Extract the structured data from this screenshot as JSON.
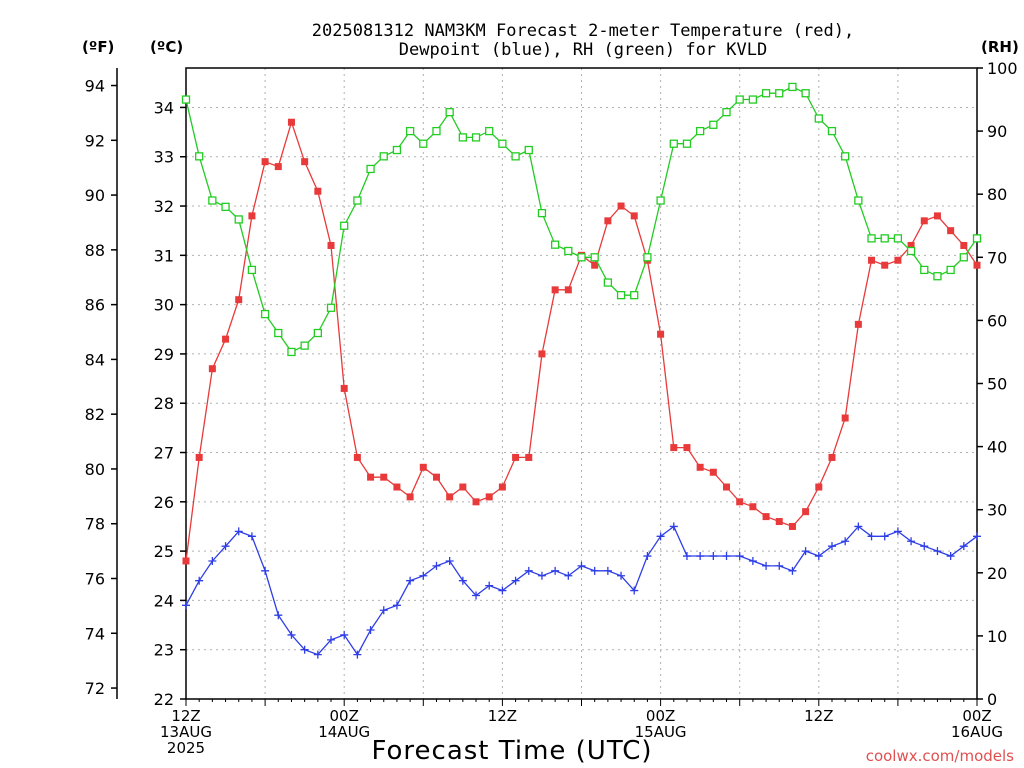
{
  "chart_data": {
    "type": "line",
    "title": [
      "2025081312 NAM3KM Forecast 2-meter Temperature (red),",
      "Dewpoint (blue), RH (green) for KVLD"
    ],
    "left_axis_labels": {
      "fahrenheit": "(ºF)",
      "celsius": "(ºC)"
    },
    "right_axis_label": "(RH)",
    "xlabel": "Forecast Time (UTC)",
    "credit": "coolwx.com/models",
    "x_ticks": [
      {
        "hour": 0,
        "lines": [
          "12Z",
          "13AUG",
          "2025"
        ]
      },
      {
        "hour": 12,
        "lines": [
          "00Z",
          "14AUG"
        ]
      },
      {
        "hour": 24,
        "lines": [
          "12Z"
        ]
      },
      {
        "hour": 36,
        "lines": [
          "00Z",
          "15AUG"
        ]
      },
      {
        "hour": 48,
        "lines": [
          "12Z"
        ]
      },
      {
        "hour": 60,
        "lines": [
          "00Z",
          "16AUG"
        ]
      }
    ],
    "xlim": [
      0,
      60
    ],
    "celsius_axis": {
      "ylim": [
        22,
        34.8
      ],
      "ticks": [
        22,
        23,
        24,
        25,
        26,
        27,
        28,
        29,
        30,
        31,
        32,
        33,
        34
      ]
    },
    "fahrenheit_axis": {
      "ticks": [
        72,
        74,
        76,
        78,
        80,
        82,
        84,
        86,
        88,
        90,
        92,
        94
      ]
    },
    "rh_axis": {
      "ylim": [
        0,
        100
      ],
      "ticks": [
        0,
        10,
        20,
        30,
        40,
        50,
        60,
        70,
        80,
        90,
        100
      ]
    },
    "grid": true,
    "series": [
      {
        "name": "Temperature",
        "units": "C",
        "color": "#e83a3a",
        "marker": "filled-square",
        "x": [
          0,
          1,
          2,
          3,
          4,
          5,
          6,
          7,
          8,
          9,
          10,
          11,
          12,
          13,
          14,
          15,
          16,
          17,
          18,
          19,
          20,
          21,
          22,
          23,
          24,
          25,
          26,
          27,
          28,
          29,
          30,
          31,
          32,
          33,
          34,
          35,
          36,
          37,
          38,
          39,
          40,
          41,
          42,
          43,
          44,
          45,
          46,
          47,
          48,
          49,
          50,
          51,
          52,
          53,
          54,
          55,
          56,
          57,
          58,
          59,
          60
        ],
        "values": [
          24.8,
          26.9,
          28.7,
          29.3,
          30.1,
          31.8,
          32.9,
          32.8,
          33.7,
          32.9,
          32.3,
          31.2,
          28.3,
          26.9,
          26.5,
          26.5,
          26.3,
          26.1,
          26.7,
          26.5,
          26.1,
          26.3,
          26.0,
          26.1,
          26.3,
          26.9,
          26.9,
          29.0,
          30.3,
          30.3,
          31.0,
          30.8,
          31.7,
          32.0,
          31.8,
          30.9,
          29.4,
          27.1,
          27.1,
          26.7,
          26.6,
          26.3,
          26.0,
          25.9,
          25.7,
          25.6,
          25.5,
          25.8,
          26.3,
          26.9,
          27.7,
          29.6,
          30.9,
          30.8,
          30.9,
          31.2,
          31.7,
          31.8,
          31.5,
          31.2,
          30.8
        ]
      },
      {
        "name": "Dewpoint",
        "units": "C",
        "color": "#2e3ee6",
        "marker": "plus",
        "x": [
          0,
          1,
          2,
          3,
          4,
          5,
          6,
          7,
          8,
          9,
          10,
          11,
          12,
          13,
          14,
          15,
          16,
          17,
          18,
          19,
          20,
          21,
          22,
          23,
          24,
          25,
          26,
          27,
          28,
          29,
          30,
          31,
          32,
          33,
          34,
          35,
          36,
          37,
          38,
          39,
          40,
          41,
          42,
          43,
          44,
          45,
          46,
          47,
          48,
          49,
          50,
          51,
          52,
          53,
          54,
          55,
          56,
          57,
          58,
          59,
          60
        ],
        "values": [
          23.9,
          24.4,
          24.8,
          25.1,
          25.4,
          25.3,
          24.6,
          23.7,
          23.3,
          23.0,
          22.9,
          23.2,
          23.3,
          22.9,
          23.4,
          23.8,
          23.9,
          24.4,
          24.5,
          24.7,
          24.8,
          24.4,
          24.1,
          24.3,
          24.2,
          24.4,
          24.6,
          24.5,
          24.6,
          24.5,
          24.7,
          24.6,
          24.6,
          24.5,
          24.2,
          24.9,
          25.3,
          25.5,
          24.9,
          24.9,
          24.9,
          24.9,
          24.9,
          24.8,
          24.7,
          24.7,
          24.6,
          25.0,
          24.9,
          25.1,
          25.2,
          25.5,
          25.3,
          25.3,
          25.4,
          25.2,
          25.1,
          25.0,
          24.9,
          25.1,
          25.3
        ]
      },
      {
        "name": "RH",
        "units": "%",
        "color": "#22cc22",
        "marker": "open-square",
        "x": [
          0,
          1,
          2,
          3,
          4,
          5,
          6,
          7,
          8,
          9,
          10,
          11,
          12,
          13,
          14,
          15,
          16,
          17,
          18,
          19,
          20,
          21,
          22,
          23,
          24,
          25,
          26,
          27,
          28,
          29,
          30,
          31,
          32,
          33,
          34,
          35,
          36,
          37,
          38,
          39,
          40,
          41,
          42,
          43,
          44,
          45,
          46,
          47,
          48,
          49,
          50,
          51,
          52,
          53,
          54,
          55,
          56,
          57,
          58,
          59,
          60
        ],
        "values": [
          95,
          86,
          79,
          78,
          76,
          68,
          61,
          58,
          55,
          56,
          58,
          62,
          75,
          79,
          84,
          86,
          87,
          90,
          88,
          90,
          93,
          89,
          89,
          90,
          88,
          86,
          87,
          77,
          72,
          71,
          70,
          70,
          66,
          64,
          64,
          70,
          79,
          88,
          88,
          90,
          91,
          93,
          95,
          95,
          96,
          96,
          97,
          96,
          92,
          90,
          86,
          79,
          73,
          73,
          73,
          71,
          68,
          67,
          68,
          70,
          73
        ]
      }
    ]
  }
}
